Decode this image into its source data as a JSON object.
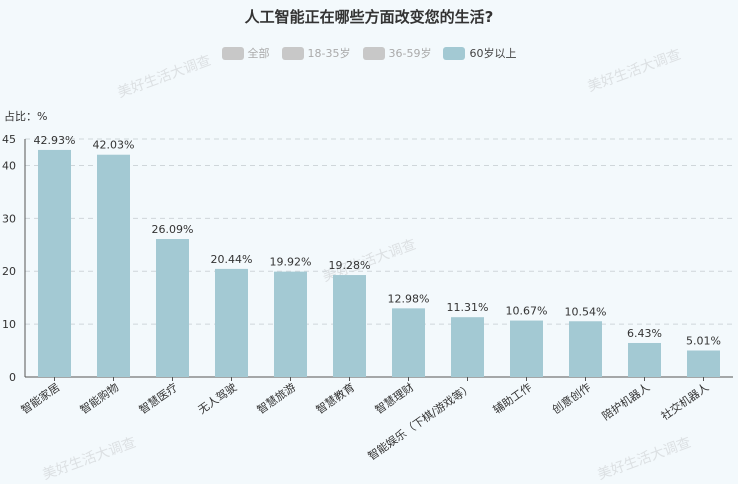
{
  "chart_data": {
    "type": "bar",
    "title": "人工智能正在哪些方面改变您的生活?",
    "unit_label": "占比：%",
    "legend": [
      {
        "label": "全部",
        "color": "#c8c8c8",
        "active": false
      },
      {
        "label": "18-35岁",
        "color": "#c8c8c8",
        "active": false
      },
      {
        "label": "36-59岁",
        "color": "#c8c8c8",
        "active": false
      },
      {
        "label": "60岁以上",
        "color": "#a3c9d3",
        "active": true
      }
    ],
    "bar_color": "#a3c9d3",
    "categories": [
      "智能家居",
      "智能购物",
      "智慧医疗",
      "无人驾驶",
      "智慧旅游",
      "智慧教育",
      "智慧理财",
      "智能娱乐（下棋/游戏等）",
      "辅助工作",
      "创意创作",
      "陪护机器人",
      "社交机器人"
    ],
    "values": [
      42.93,
      42.03,
      26.09,
      20.44,
      19.92,
      19.28,
      12.98,
      11.31,
      10.67,
      10.54,
      6.43,
      5.01
    ],
    "value_labels": [
      "42.93%",
      "42.03%",
      "26.09%",
      "20.44%",
      "19.92%",
      "19.28%",
      "12.98%",
      "11.31%",
      "10.67%",
      "10.54%",
      "6.43%",
      "5.01%"
    ],
    "ylim": [
      0,
      45
    ],
    "yticks": [
      0,
      10,
      20,
      30,
      40,
      45
    ],
    "grid": true
  },
  "watermark": "美好生活大调查"
}
